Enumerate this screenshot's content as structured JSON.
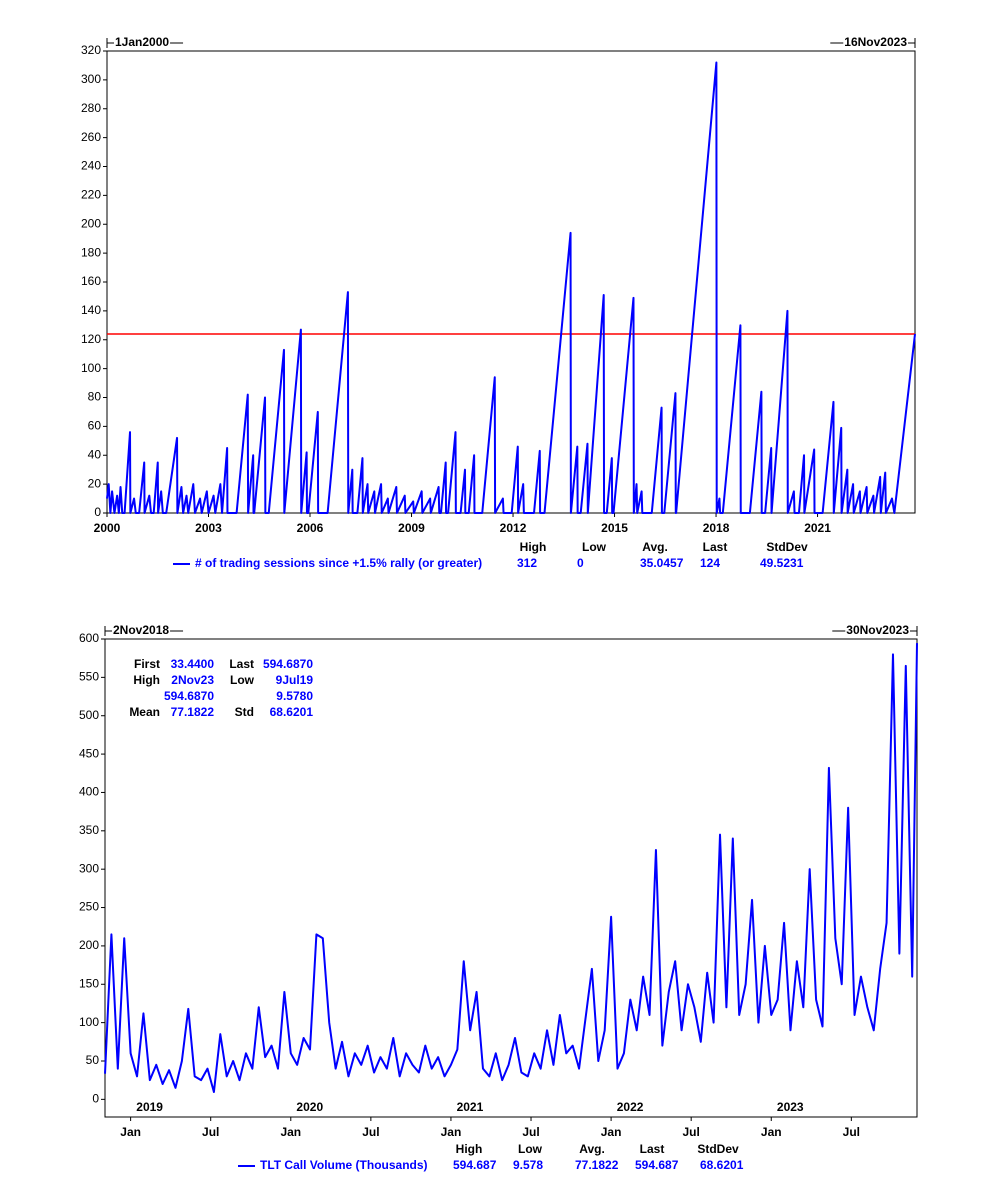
{
  "chart_data": [
    {
      "type": "line",
      "start_label": "1Jan2000",
      "end_label": "16Nov2023",
      "x": [
        2000.0,
        2000.05,
        2000.1,
        2000.15,
        2000.22,
        2000.3,
        2000.35,
        2000.4,
        2000.45,
        2000.52,
        2000.68,
        2000.69,
        2000.8,
        2000.85,
        2000.95,
        2001.1,
        2001.11,
        2001.25,
        2001.3,
        2001.38,
        2001.5,
        2001.51,
        2001.6,
        2001.65,
        2001.75,
        2002.07,
        2002.08,
        2002.2,
        2002.25,
        2002.35,
        2002.4,
        2002.55,
        2002.6,
        2002.75,
        2002.8,
        2002.95,
        2003.0,
        2003.15,
        2003.2,
        2003.35,
        2003.4,
        2003.55,
        2003.56,
        2003.83,
        2004.16,
        2004.17,
        2004.32,
        2004.33,
        2004.35,
        2004.67,
        2004.68,
        2004.78,
        2005.23,
        2005.24,
        2005.73,
        2005.74,
        2005.9,
        2005.91,
        2005.95,
        2006.23,
        2006.24,
        2006.52,
        2007.12,
        2007.13,
        2007.25,
        2007.26,
        2007.4,
        2007.55,
        2007.56,
        2007.7,
        2007.72,
        2007.9,
        2007.92,
        2008.1,
        2008.12,
        2008.3,
        2008.32,
        2008.55,
        2008.57,
        2008.8,
        2008.82,
        2009.05,
        2009.07,
        2009.3,
        2009.32,
        2009.55,
        2009.57,
        2009.8,
        2009.82,
        2009.87,
        2010.01,
        2010.02,
        2010.08,
        2010.3,
        2010.31,
        2010.45,
        2010.58,
        2010.59,
        2010.69,
        2010.85,
        2010.86,
        2011.09,
        2011.46,
        2011.47,
        2011.7,
        2011.72,
        2011.96,
        2012.14,
        2012.15,
        2012.3,
        2012.32,
        2012.62,
        2012.79,
        2012.8,
        2012.93,
        2013.7,
        2013.71,
        2013.9,
        2013.91,
        2014.0,
        2014.2,
        2014.21,
        2014.68,
        2014.69,
        2014.77,
        2014.92,
        2014.93,
        2014.97,
        2015.56,
        2015.57,
        2015.65,
        2015.67,
        2015.8,
        2015.82,
        2016.1,
        2016.39,
        2016.4,
        2016.47,
        2016.8,
        2016.81,
        2016.82,
        2018.01,
        2018.02,
        2018.1,
        2018.12,
        2018.2,
        2018.72,
        2018.73,
        2019.0,
        2019.34,
        2019.35,
        2019.45,
        2019.63,
        2019.64,
        2020.11,
        2020.12,
        2020.3,
        2020.32,
        2020.45,
        2020.6,
        2020.61,
        2020.9,
        2020.91,
        2021.15,
        2021.47,
        2021.48,
        2021.7,
        2021.71,
        2021.88,
        2021.89,
        2022.05,
        2022.07,
        2022.25,
        2022.27,
        2022.45,
        2022.47,
        2022.65,
        2022.67,
        2022.85,
        2022.87,
        2023.0,
        2023.02,
        2023.2,
        2023.27,
        2023.88
      ],
      "series": [
        {
          "name": "# of trading sessions since +1.5% rally (or greater)",
          "color": "#0000ff",
          "values": [
            10,
            20,
            0,
            15,
            0,
            12,
            0,
            18,
            0,
            0,
            56,
            0,
            10,
            0,
            0,
            35,
            0,
            12,
            0,
            0,
            35,
            0,
            15,
            0,
            0,
            52,
            0,
            18,
            0,
            12,
            0,
            20,
            0,
            10,
            0,
            15,
            0,
            12,
            0,
            20,
            0,
            45,
            0,
            0,
            82,
            0,
            40,
            0,
            0,
            80,
            0,
            0,
            113,
            0,
            127,
            0,
            42,
            0,
            0,
            70,
            0,
            0,
            153,
            0,
            30,
            0,
            0,
            38,
            0,
            20,
            0,
            15,
            0,
            20,
            0,
            10,
            0,
            18,
            0,
            12,
            0,
            8,
            0,
            15,
            0,
            10,
            0,
            18,
            0,
            0,
            35,
            0,
            0,
            56,
            0,
            0,
            30,
            0,
            0,
            40,
            0,
            0,
            94,
            0,
            10,
            0,
            0,
            46,
            0,
            20,
            0,
            0,
            43,
            0,
            0,
            194,
            0,
            46,
            0,
            0,
            48,
            0,
            151,
            0,
            0,
            38,
            0,
            0,
            149,
            0,
            20,
            0,
            15,
            0,
            0,
            73,
            0,
            0,
            83,
            0,
            0,
            312,
            0,
            10,
            0,
            0,
            130,
            0,
            0,
            84,
            0,
            0,
            45,
            0,
            140,
            0,
            15,
            0,
            0,
            40,
            0,
            44,
            0,
            0,
            77,
            0,
            59,
            0,
            30,
            0,
            20,
            0,
            15,
            0,
            18,
            0,
            12,
            0,
            25,
            0,
            28,
            0,
            10,
            0,
            124
          ]
        }
      ],
      "reference_line": {
        "value": 124,
        "color": "#ff0000"
      },
      "xlim": [
        2000,
        2023.88
      ],
      "xticks": [
        2000,
        2003,
        2006,
        2009,
        2012,
        2015,
        2018,
        2021
      ],
      "ylim": [
        0,
        320
      ],
      "yticks": [
        0,
        20,
        40,
        60,
        80,
        100,
        120,
        140,
        160,
        180,
        200,
        220,
        240,
        260,
        280,
        300,
        320
      ],
      "stats": {
        "labels": [
          "High",
          "Low",
          "Avg.",
          "Last",
          "StdDev"
        ],
        "values": [
          312,
          0,
          35.0457,
          124,
          49.5231
        ]
      }
    },
    {
      "type": "line",
      "start_label": "2Nov2018",
      "end_label": "30Nov2023",
      "x": [
        2018.84,
        2018.88,
        2018.92,
        2018.96,
        2019.0,
        2019.04,
        2019.08,
        2019.12,
        2019.16,
        2019.2,
        2019.24,
        2019.28,
        2019.32,
        2019.36,
        2019.4,
        2019.44,
        2019.48,
        2019.52,
        2019.56,
        2019.6,
        2019.64,
        2019.68,
        2019.72,
        2019.76,
        2019.8,
        2019.84,
        2019.88,
        2019.92,
        2019.96,
        2020.0,
        2020.04,
        2020.08,
        2020.12,
        2020.16,
        2020.2,
        2020.24,
        2020.28,
        2020.32,
        2020.36,
        2020.4,
        2020.44,
        2020.48,
        2020.52,
        2020.56,
        2020.6,
        2020.64,
        2020.68,
        2020.72,
        2020.76,
        2020.8,
        2020.84,
        2020.88,
        2020.92,
        2020.96,
        2021.0,
        2021.04,
        2021.08,
        2021.12,
        2021.16,
        2021.2,
        2021.24,
        2021.28,
        2021.32,
        2021.36,
        2021.4,
        2021.44,
        2021.48,
        2021.52,
        2021.56,
        2021.6,
        2021.64,
        2021.68,
        2021.72,
        2021.76,
        2021.8,
        2021.84,
        2021.88,
        2021.92,
        2021.96,
        2022.0,
        2022.04,
        2022.08,
        2022.12,
        2022.16,
        2022.2,
        2022.24,
        2022.28,
        2022.32,
        2022.36,
        2022.4,
        2022.44,
        2022.48,
        2022.52,
        2022.56,
        2022.6,
        2022.64,
        2022.68,
        2022.72,
        2022.76,
        2022.8,
        2022.84,
        2022.88,
        2022.92,
        2022.96,
        2023.0,
        2023.04,
        2023.08,
        2023.12,
        2023.16,
        2023.2,
        2023.24,
        2023.28,
        2023.32,
        2023.36,
        2023.4,
        2023.44,
        2023.48,
        2023.52,
        2023.56,
        2023.6,
        2023.64,
        2023.68,
        2023.72,
        2023.76,
        2023.8,
        2023.84,
        2023.88,
        2023.91
      ],
      "series": [
        {
          "name": "TLT Call Volume (Thousands)",
          "color": "#0000ff",
          "values": [
            33.44,
            215,
            40,
            210,
            60,
            30,
            112,
            25,
            45,
            20,
            38,
            15,
            50,
            118,
            30,
            25,
            40,
            9.578,
            85,
            30,
            50,
            25,
            60,
            40,
            120,
            55,
            70,
            40,
            140,
            60,
            45,
            80,
            65,
            215,
            210,
            100,
            40,
            75,
            30,
            60,
            45,
            70,
            35,
            55,
            40,
            80,
            30,
            60,
            45,
            35,
            70,
            40,
            55,
            30,
            45,
            65,
            180,
            90,
            140,
            40,
            30,
            60,
            25,
            45,
            80,
            35,
            30,
            60,
            40,
            90,
            45,
            110,
            60,
            70,
            40,
            105,
            170,
            50,
            90,
            238,
            40,
            60,
            130,
            90,
            160,
            110,
            325,
            70,
            140,
            180,
            90,
            150,
            120,
            75,
            165,
            100,
            345,
            120,
            340,
            110,
            150,
            260,
            100,
            200,
            110,
            130,
            230,
            90,
            180,
            120,
            300,
            130,
            95,
            432,
            210,
            150,
            380,
            110,
            160,
            120,
            90,
            170,
            230,
            580,
            190,
            565,
            160,
            594.687
          ]
        }
      ],
      "xlim": [
        2018.84,
        2023.91
      ],
      "xticks": [
        {
          "value": 2019,
          "label": "Jan"
        },
        {
          "value": 2019.5,
          "label": "Jul"
        },
        {
          "value": 2020,
          "label": "Jan"
        },
        {
          "value": 2020.5,
          "label": "Jul"
        },
        {
          "value": 2021,
          "label": "Jan"
        },
        {
          "value": 2021.5,
          "label": "Jul"
        },
        {
          "value": 2022,
          "label": "Jan"
        },
        {
          "value": 2022.5,
          "label": "Jul"
        },
        {
          "value": 2023,
          "label": "Jan"
        },
        {
          "value": 2023.5,
          "label": "Jul"
        }
      ],
      "year_ticks": [
        2019,
        2020,
        2021,
        2022,
        2023
      ],
      "ylim": [
        -23,
        600
      ],
      "yticks": [
        0,
        50,
        100,
        150,
        200,
        250,
        300,
        350,
        400,
        450,
        500,
        550,
        600
      ],
      "info": [
        {
          "label": "First",
          "value": "33.4400"
        },
        {
          "label": "Last",
          "value": "594.6870"
        },
        {
          "label": "High",
          "value": "2Nov23",
          "value2": "594.6870"
        },
        {
          "label": "Low",
          "value": "9Jul19",
          "value2": "9.5780"
        },
        {
          "label": "Mean",
          "value": "77.1822"
        },
        {
          "label": "Std",
          "value": "68.6201"
        }
      ],
      "stats": {
        "labels": [
          "High",
          "Low",
          "Avg.",
          "Last",
          "StdDev"
        ],
        "values": [
          594.687,
          9.578,
          77.1822,
          594.687,
          68.6201
        ]
      }
    }
  ]
}
